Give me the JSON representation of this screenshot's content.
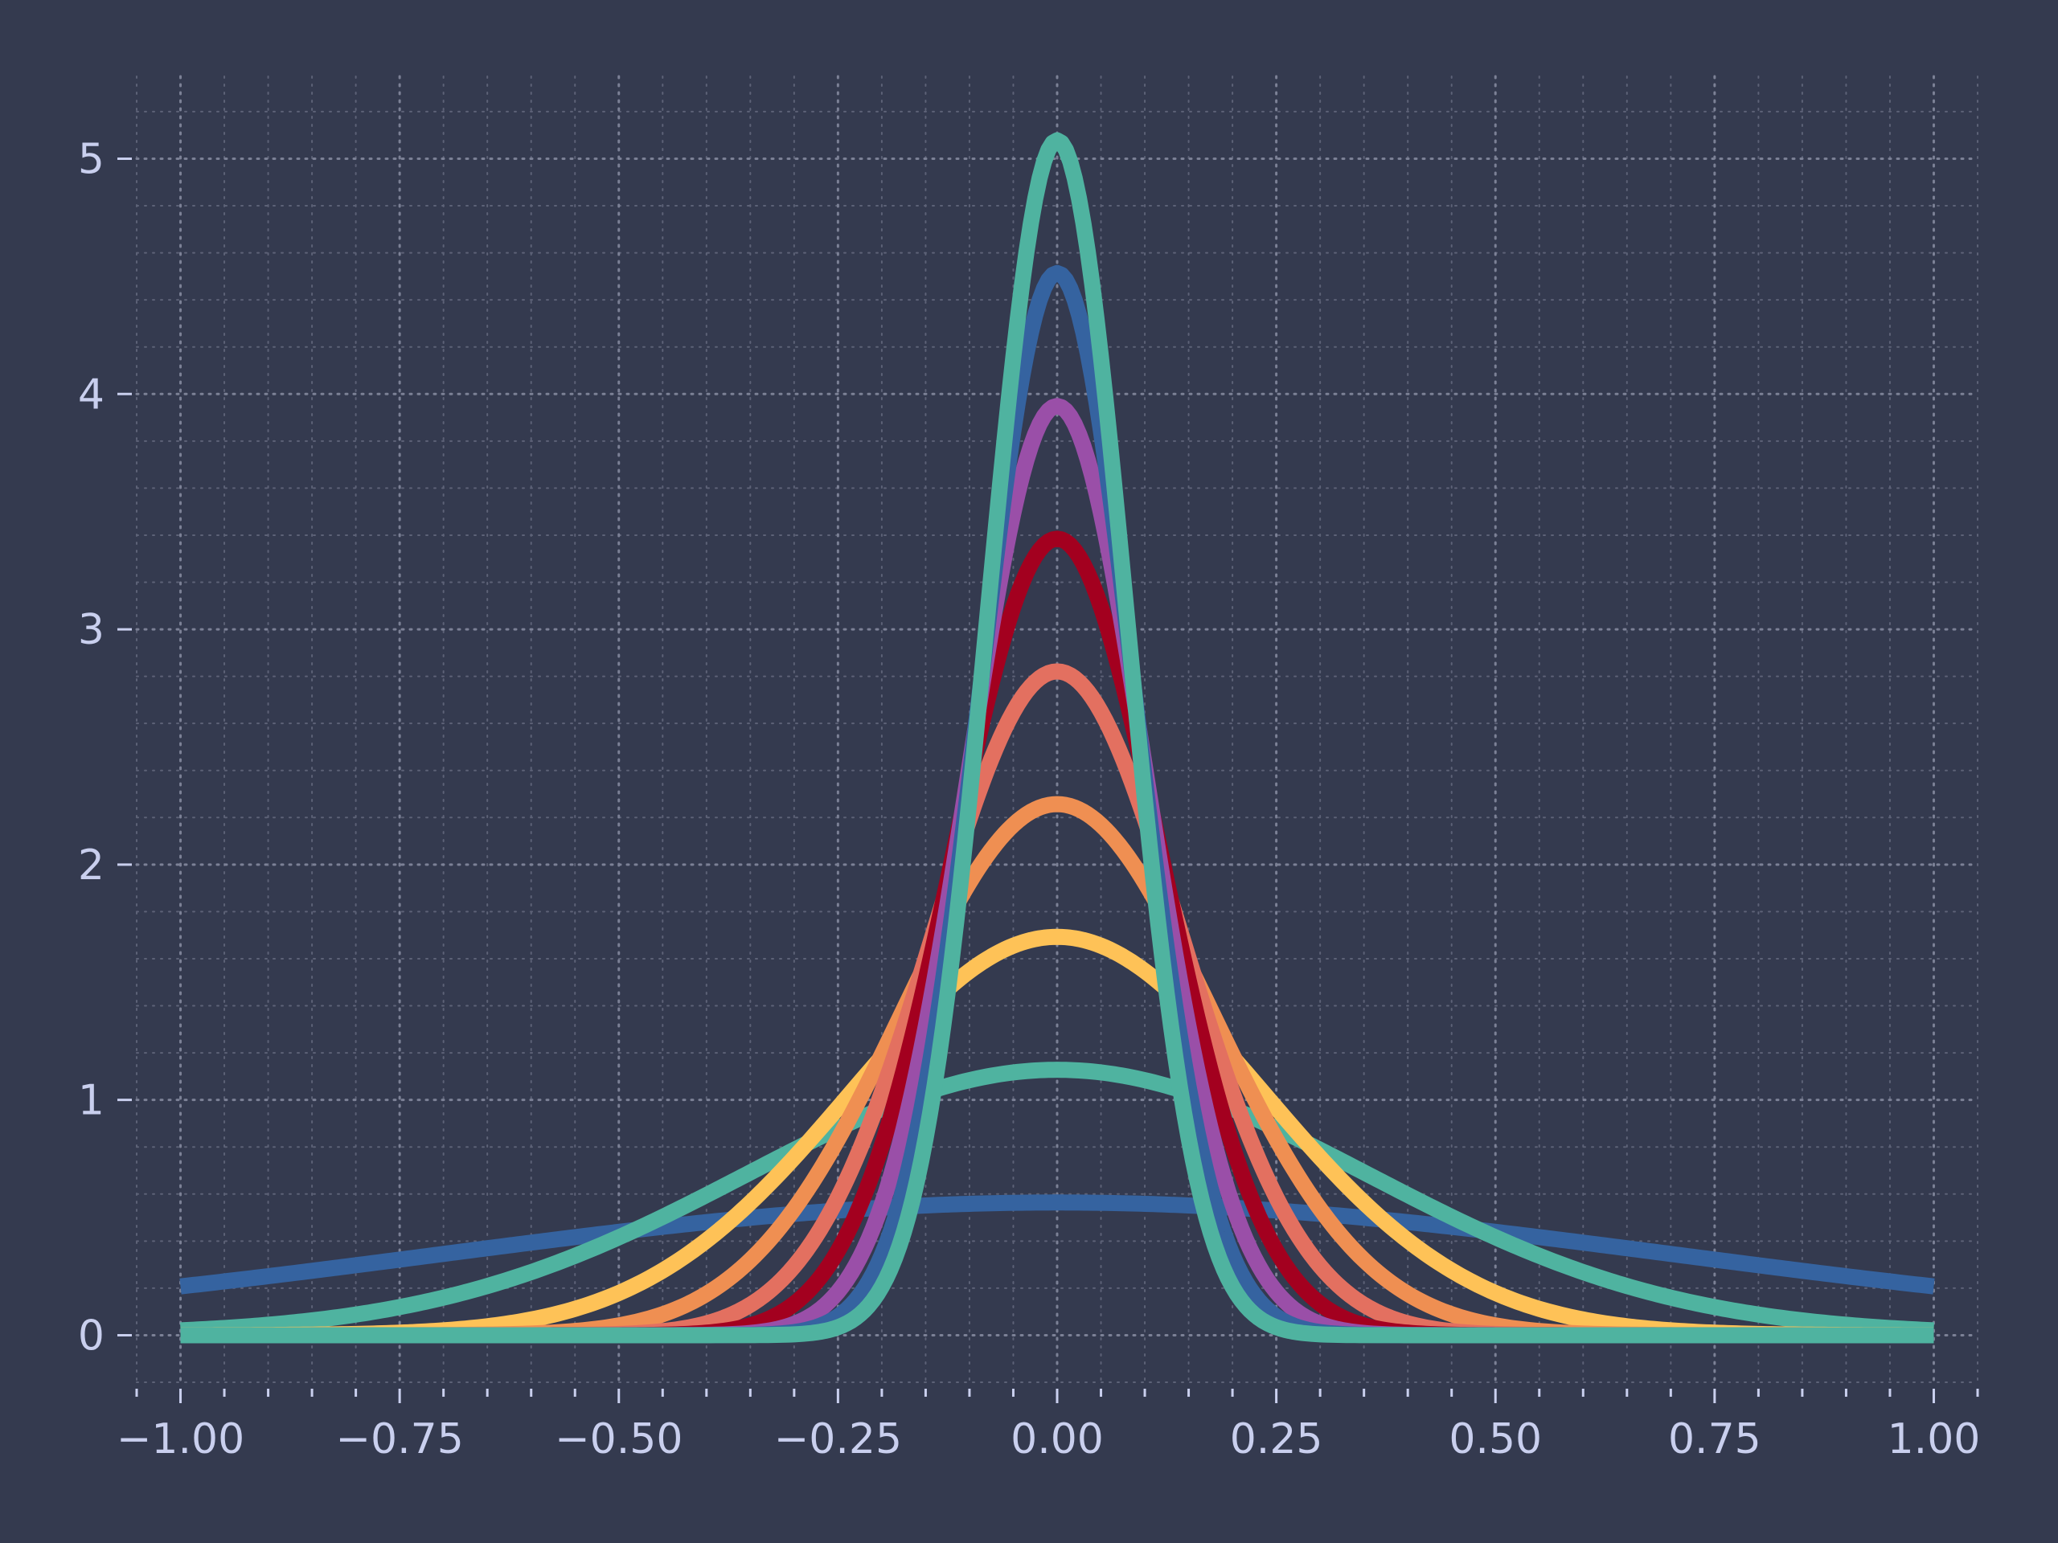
{
  "chart_data": {
    "type": "line",
    "title": "",
    "xlabel": "",
    "ylabel": "",
    "xlim": [
      -1.05,
      1.05
    ],
    "ylim": [
      -0.2,
      5.35
    ],
    "grid": true,
    "x_ticks": [
      -1.0,
      -0.75,
      -0.5,
      -0.25,
      0.0,
      0.25,
      0.5,
      0.75,
      1.0
    ],
    "x_tick_labels": [
      "−1.00",
      "−0.75",
      "−0.50",
      "−0.25",
      "0.00",
      "0.25",
      "0.50",
      "0.75",
      "1.00"
    ],
    "y_ticks": [
      0,
      1,
      2,
      3,
      4,
      5
    ],
    "y_tick_labels": [
      "0",
      "1",
      "2",
      "3",
      "4",
      "5"
    ],
    "x_range": [
      -1.0,
      1.0
    ],
    "series": [
      {
        "color": "#3563a0",
        "curve": "gaussian",
        "peak": 0.564,
        "peak_x": 0.0,
        "stddev": 0.707
      },
      {
        "color": "#4fb3a0",
        "curve": "gaussian",
        "peak": 1.128,
        "peak_x": 0.0,
        "stddev": 0.354
      },
      {
        "color": "#fec257",
        "curve": "gaussian",
        "peak": 1.693,
        "peak_x": 0.0,
        "stddev": 0.236
      },
      {
        "color": "#ef8f52",
        "curve": "gaussian",
        "peak": 2.257,
        "peak_x": 0.0,
        "stddev": 0.177
      },
      {
        "color": "#e37060",
        "curve": "gaussian",
        "peak": 2.821,
        "peak_x": 0.0,
        "stddev": 0.141
      },
      {
        "color": "#a3001f",
        "curve": "gaussian",
        "peak": 3.385,
        "peak_x": 0.0,
        "stddev": 0.118
      },
      {
        "color": "#9a4fa8",
        "curve": "gaussian",
        "peak": 3.949,
        "peak_x": 0.0,
        "stddev": 0.101
      },
      {
        "color": "#3563a0",
        "curve": "gaussian",
        "peak": 4.514,
        "peak_x": 0.0,
        "stddev": 0.088
      },
      {
        "color": "#4fb3a0",
        "curve": "gaussian",
        "peak": 5.078,
        "peak_x": 0.0,
        "stddev": 0.079
      }
    ]
  }
}
